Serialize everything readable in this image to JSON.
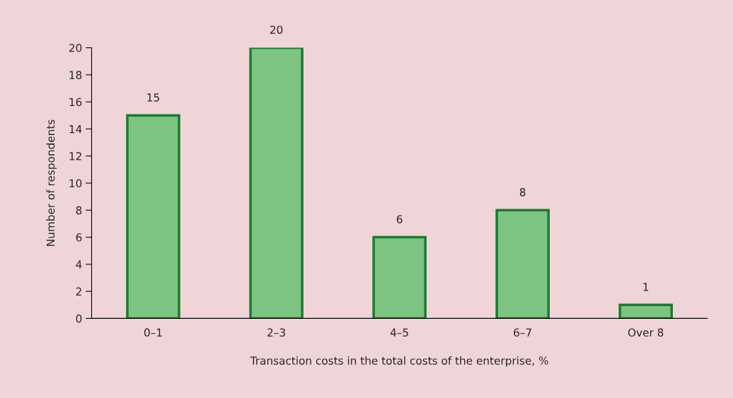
{
  "chart_data": {
    "type": "bar",
    "xlabel": "Transaction costs in the total costs of the enterprise, %",
    "ylabel": "Number of respondents",
    "categories": [
      "0–1",
      "2–3",
      "4–5",
      "6–7",
      "Over 8"
    ],
    "values": [
      15,
      20,
      6,
      8,
      1
    ],
    "color": "#7cc47f",
    "ylim": [
      0,
      20
    ],
    "yticks": [
      0,
      2,
      4,
      6,
      8,
      10,
      12,
      14,
      16,
      18,
      20
    ],
    "data_labels": true,
    "grid": false,
    "legend": false
  }
}
